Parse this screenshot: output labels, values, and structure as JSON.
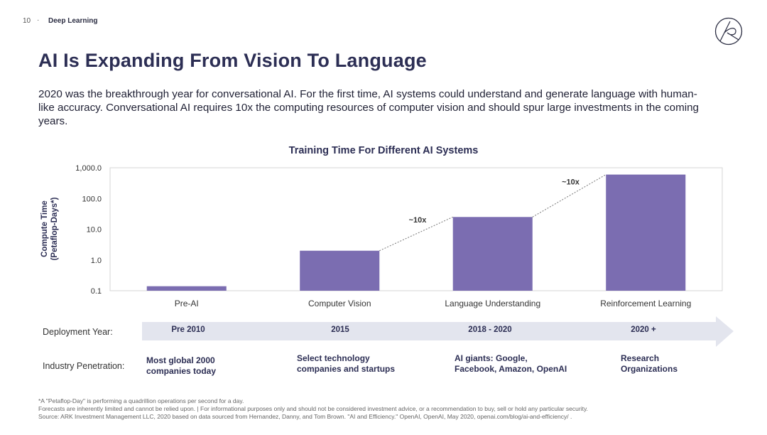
{
  "header": {
    "page_number": "10",
    "separator": "·",
    "section": "Deep Learning"
  },
  "title": "AI Is Expanding From Vision To Language",
  "intro": "2020 was the breakthrough year for conversational AI. For the first time, AI systems could understand and generate language with human-like accuracy. Conversational AI requires 10x the computing resources of computer vision and should spur large investments in the coming years.",
  "chart_data": {
    "type": "bar",
    "title": "Training Time For Different AI Systems",
    "ylabel_line1": "Compute Time",
    "ylabel_line2": "(Petaflop-Days*)",
    "yscale": "log",
    "ylim": [
      0.1,
      1000
    ],
    "yticks": [
      {
        "value": 0.1,
        "label": "0.1"
      },
      {
        "value": 1,
        "label": "1.0"
      },
      {
        "value": 10,
        "label": "10.0"
      },
      {
        "value": 100,
        "label": "100.0"
      },
      {
        "value": 1000,
        "label": "1,000.0"
      }
    ],
    "categories": [
      "Pre-AI",
      "Computer Vision",
      "Language Understanding",
      "Reinforcement Learning"
    ],
    "values": [
      0.14,
      2.0,
      25,
      600
    ],
    "bar_color": "#7b6db1",
    "annotations": [
      {
        "text": "~10x",
        "between": [
          1,
          2
        ]
      },
      {
        "text": "~10x",
        "between": [
          2,
          3
        ]
      }
    ]
  },
  "deployment": {
    "label": "Deployment Year:",
    "years": [
      "Pre 2010",
      "2015",
      "2018 - 2020",
      "2020 +"
    ],
    "arrow_color": "#e3e5ee"
  },
  "penetration": {
    "label": "Industry Penetration:",
    "items": [
      [
        "Most global 2000",
        "companies today"
      ],
      [
        "Select technology",
        "companies and startups"
      ],
      [
        "AI giants: Google,",
        "Facebook, Amazon, OpenAI"
      ],
      [
        "Research",
        "Organizations"
      ]
    ]
  },
  "footnotes": [
    "*A \"Petaflop-Day\" is performing a quadrillion operations per second for a day.",
    "Forecasts are inherently limited and cannot be relied upon.  |  For informational purposes only and should not be considered investment advice, or a recommendation to buy, sell or hold any particular security.",
    "Source: ARK Investment Management LLC, 2020 based on data sourced from Hernandez, Danny, and Tom Brown. \"AI and Efficiency.\" OpenAI, OpenAI, May 2020, openai.com/blog/ai-and-efficiency/ ."
  ]
}
